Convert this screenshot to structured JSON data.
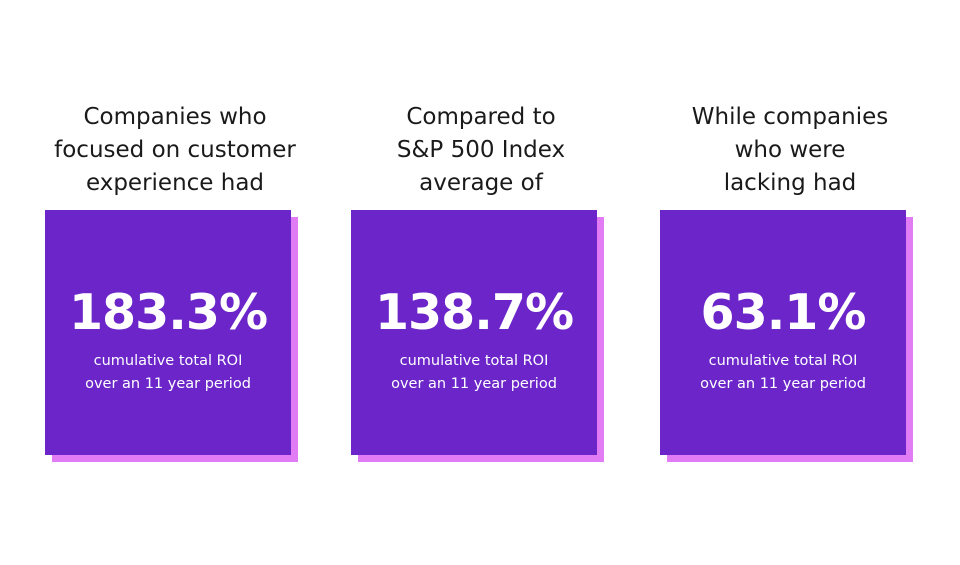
{
  "cards": [
    {
      "heading": [
        "Companies who",
        "focused on customer",
        "experience had"
      ],
      "stat": "183.3%",
      "caption": [
        "cumulative total ROI",
        "over an 11 year period"
      ]
    },
    {
      "heading": [
        "Compared to",
        "S&P 500 Index",
        "average of"
      ],
      "stat": "138.7%",
      "caption": [
        "cumulative total ROI",
        "over an 11 year period"
      ]
    },
    {
      "heading": [
        "While companies",
        "who were",
        "lacking had"
      ],
      "stat": "63.1%",
      "caption": [
        "cumulative total ROI",
        "over an 11 year period"
      ]
    }
  ],
  "colors": {
    "card": "#6b25c9",
    "shadow": "#e27cf5",
    "heading_text": "#1a1a1a",
    "card_text": "#ffffff"
  }
}
